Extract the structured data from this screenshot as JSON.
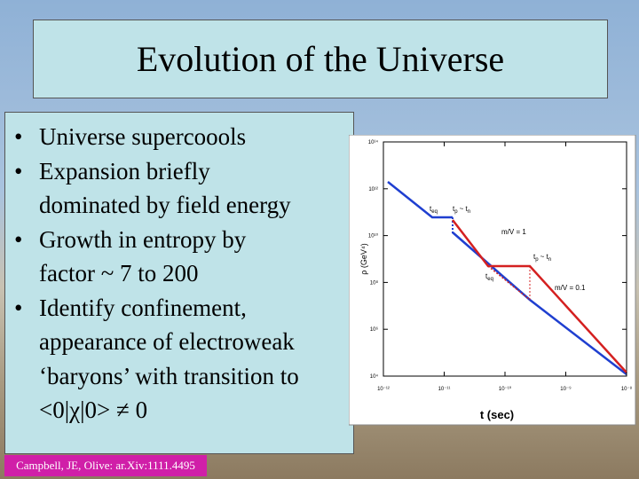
{
  "header": {
    "title": "Evolution of the Universe"
  },
  "bullet": "•",
  "bullets": [
    {
      "lines": [
        "Universe supercoools"
      ]
    },
    {
      "lines": [
        "Expansion briefly",
        "dominated by field energy"
      ]
    },
    {
      "lines": [
        "Growth in entropy by",
        "factor ~ 7 to 200"
      ]
    },
    {
      "lines": [
        "Identify confinement,",
        "appearance of electroweak",
        "‘baryons’ with transition to",
        "<0|χ|0> ≠ 0"
      ]
    }
  ],
  "citation": "Campbell, JE, Olive: ar.Xiv:1111.4495",
  "plot": {
    "y_label": "ρ (GeV⁴)",
    "x_label": "t (sec)",
    "yticks": [
      "10¹⁴",
      "10¹²",
      "10¹⁰",
      "10⁸",
      "10⁶",
      "10⁴"
    ],
    "xticks": [
      "10⁻¹²",
      "10⁻¹¹",
      "10⁻¹⁰",
      "10⁻⁹",
      "10⁻⁸"
    ],
    "annotations": [
      {
        "parts": [
          "t",
          "eq"
        ]
      },
      {
        "parts": [
          "t",
          "p",
          "~ t",
          "n"
        ]
      },
      {
        "parts": [
          "m/V = 1"
        ]
      },
      {
        "parts": [
          "t",
          "p",
          "~ t",
          "n"
        ]
      },
      {
        "parts": [
          "t",
          "eq"
        ]
      },
      {
        "parts": [
          "m/V = 0.1"
        ]
      }
    ]
  }
}
